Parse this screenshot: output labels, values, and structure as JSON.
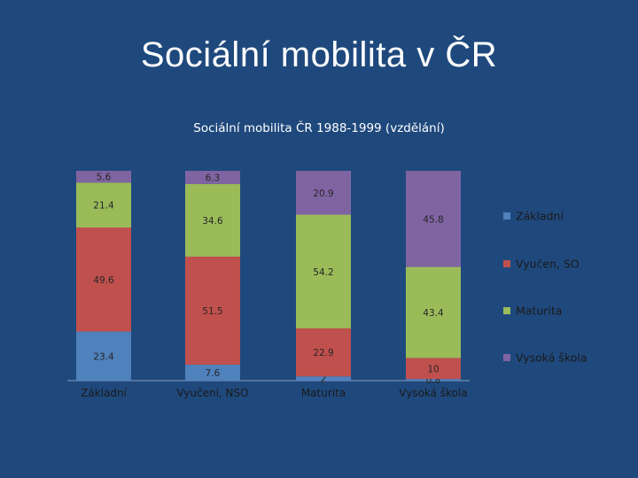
{
  "slide": {
    "title": "Sociální mobilita v ČR"
  },
  "chart_data": {
    "type": "bar",
    "stacked": true,
    "normalized": true,
    "title": "Sociální mobilita ČR 1988-1999 (vzdělání)",
    "categories": [
      "Základní",
      "Vyučení, NSO",
      "Maturita",
      "Vysoká škola"
    ],
    "series": [
      {
        "name": "Základní",
        "color": "#4f81bd",
        "values": [
          23.4,
          7.6,
          2,
          0.8
        ]
      },
      {
        "name": "Vyučen, SO",
        "color": "#c0504d",
        "values": [
          49.6,
          51.5,
          22.9,
          10
        ]
      },
      {
        "name": "Maturita",
        "color": "#9bbb59",
        "values": [
          21.4,
          34.6,
          54.2,
          43.4
        ]
      },
      {
        "name": "Vysoká škola",
        "color": "#8064a2",
        "values": [
          5.6,
          6.3,
          20.9,
          45.8
        ]
      }
    ],
    "legend_position": "right",
    "ylim": [
      0,
      100
    ],
    "grid": false,
    "xlabel": "",
    "ylabel": ""
  }
}
